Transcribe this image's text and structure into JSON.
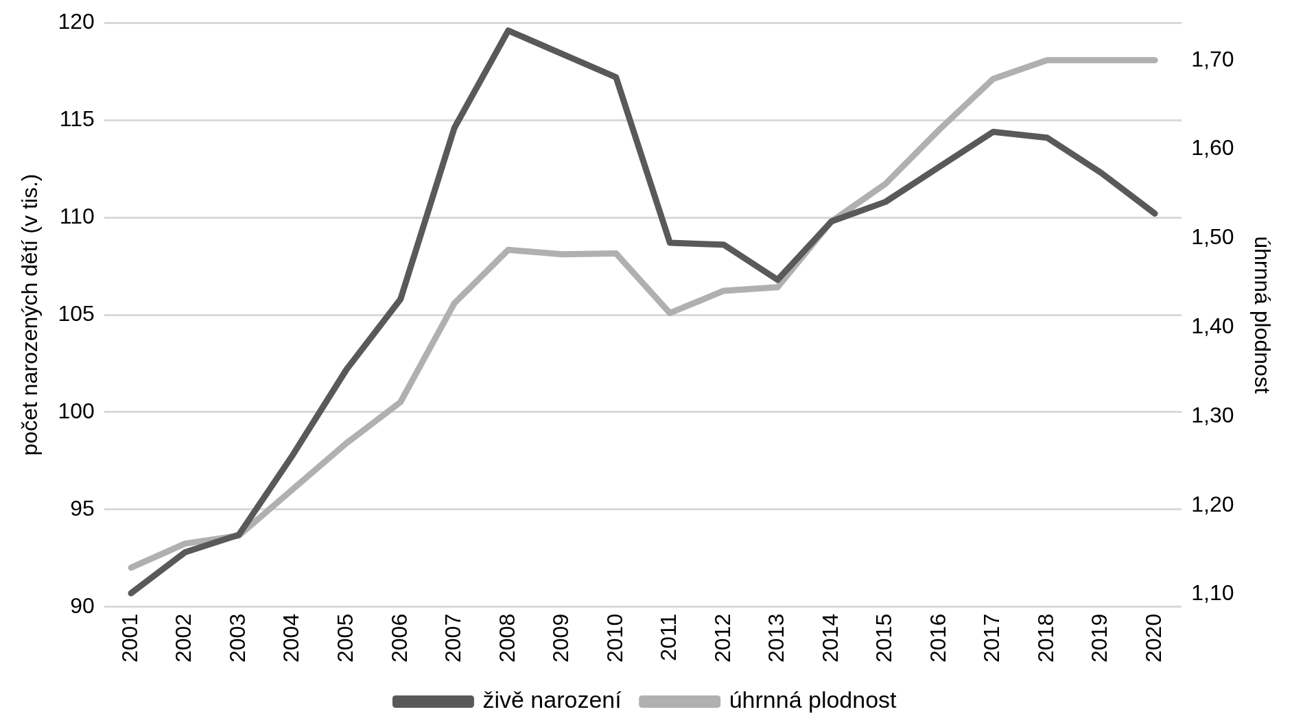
{
  "chart_data": {
    "type": "line",
    "ylabel": "počet narozených dětí (v tis.)",
    "y2label": "úhrnná plodnost",
    "categories": [
      "2001",
      "2002",
      "2003",
      "2004",
      "2005",
      "2006",
      "2007",
      "2008",
      "2009",
      "2010",
      "2011",
      "2012",
      "2013",
      "2014",
      "2015",
      "2016",
      "2017",
      "2018",
      "2019",
      "2020"
    ],
    "series": [
      {
        "name": "živě narození",
        "color": "#595959",
        "values": [
          90.7,
          92.8,
          93.7,
          97.8,
          102.2,
          105.8,
          114.6,
          119.6,
          118.4,
          117.2,
          108.7,
          108.6,
          106.8,
          109.8,
          110.8,
          112.6,
          114.4,
          114.1,
          112.3,
          110.2
        ]
      },
      {
        "name": "úhrnná plodnost",
        "color": "#b0b0b0",
        "axis": "y2",
        "values": [
          1.13,
          1.157,
          1.166,
          1.218,
          1.27,
          1.316,
          1.427,
          1.487,
          1.482,
          1.483,
          1.416,
          1.441,
          1.445,
          1.519,
          1.561,
          1.622,
          1.679,
          1.7,
          1.7,
          1.7
        ]
      }
    ],
    "ylim": [
      90,
      120
    ],
    "yticks": [
      90,
      95,
      100,
      105,
      110,
      115,
      120
    ],
    "y2lim": [
      1.086,
      1.742
    ],
    "y2ticks": [
      {
        "value": 1.1,
        "label": "1,10"
      },
      {
        "value": 1.2,
        "label": "1,20"
      },
      {
        "value": 1.3,
        "label": "1,30"
      },
      {
        "value": 1.4,
        "label": "1,40"
      },
      {
        "value": 1.5,
        "label": "1,50"
      },
      {
        "value": 1.6,
        "label": "1,60"
      },
      {
        "value": 1.7,
        "label": "1,70"
      }
    ],
    "grid": "y",
    "legend": "bottom",
    "marker": "none",
    "line_style": "solid"
  }
}
